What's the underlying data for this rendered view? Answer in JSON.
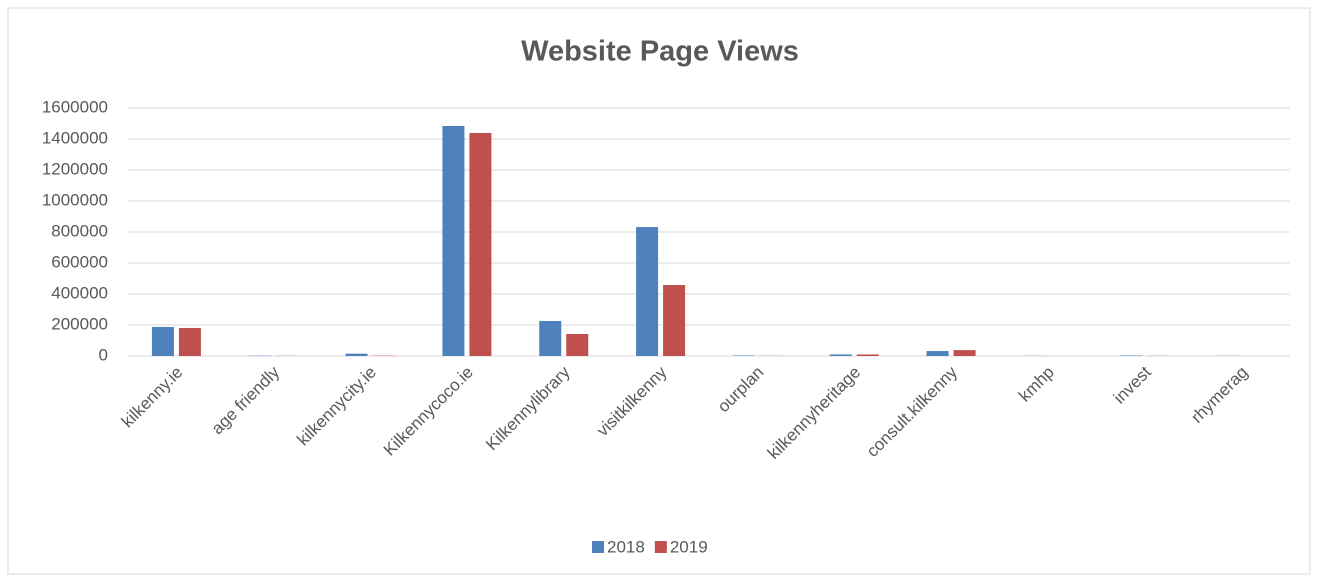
{
  "chart_data": {
    "type": "bar",
    "title": "Website Page Views",
    "categories": [
      "kilkenny.ie",
      "age friendly",
      "kilkennycity.ie",
      "Kilkennycoco.ie",
      "Kilkennylibrary",
      "visitkilkenny",
      "ourplan",
      "kilkennyheritage",
      "consult.kilkenny",
      "kmhp",
      "invest",
      "rhymerag"
    ],
    "series": [
      {
        "name": "2018",
        "color": "#4f81bd",
        "values": [
          187000,
          2000,
          15000,
          1484000,
          226000,
          832000,
          3000,
          10000,
          32000,
          1000,
          3000,
          1000
        ]
      },
      {
        "name": "2019",
        "color": "#c0504d",
        "values": [
          181000,
          1000,
          2000,
          1439000,
          142000,
          458000,
          1000,
          10000,
          38000,
          500,
          1000,
          500
        ]
      }
    ],
    "ylim": [
      0,
      1600000
    ],
    "yticks": [
      0,
      200000,
      400000,
      600000,
      800000,
      1000000,
      1200000,
      1400000,
      1600000
    ],
    "grid": true,
    "legend": "bottom"
  }
}
